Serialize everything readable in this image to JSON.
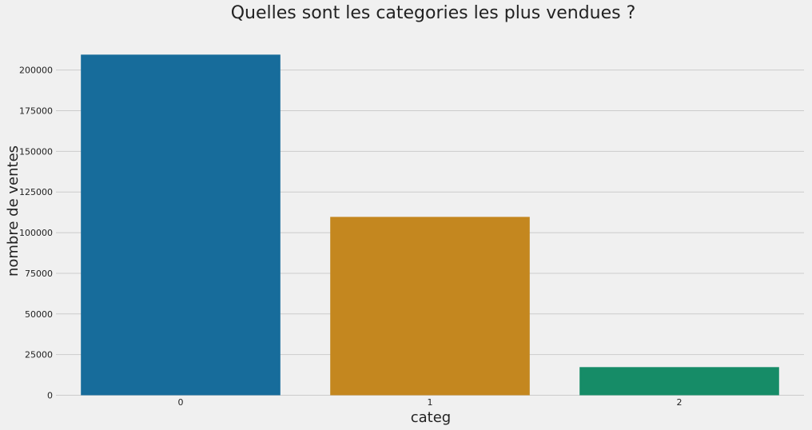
{
  "chart_data": {
    "type": "bar",
    "title": "Quelles sont les categories les plus vendues ?",
    "xlabel": "categ",
    "ylabel": "nombre de ventes",
    "categories": [
      "0",
      "1",
      "2"
    ],
    "values": [
      209500,
      109700,
      17300
    ],
    "colors": [
      "#0072b2",
      "#e69f00",
      "#009e73"
    ],
    "bar_colors_rendered": [
      "#176c9b",
      "#c4871f",
      "#168c67"
    ],
    "ylim": [
      0,
      220000
    ],
    "yticks": [
      0,
      25000,
      50000,
      75000,
      100000,
      125000,
      150000,
      175000,
      200000
    ],
    "ytick_labels": [
      "0",
      "25000",
      "50000",
      "75000",
      "100000",
      "125000",
      "150000",
      "175000",
      "200000"
    ],
    "grid": true,
    "legend": "none",
    "background": "#f0f0f0"
  }
}
